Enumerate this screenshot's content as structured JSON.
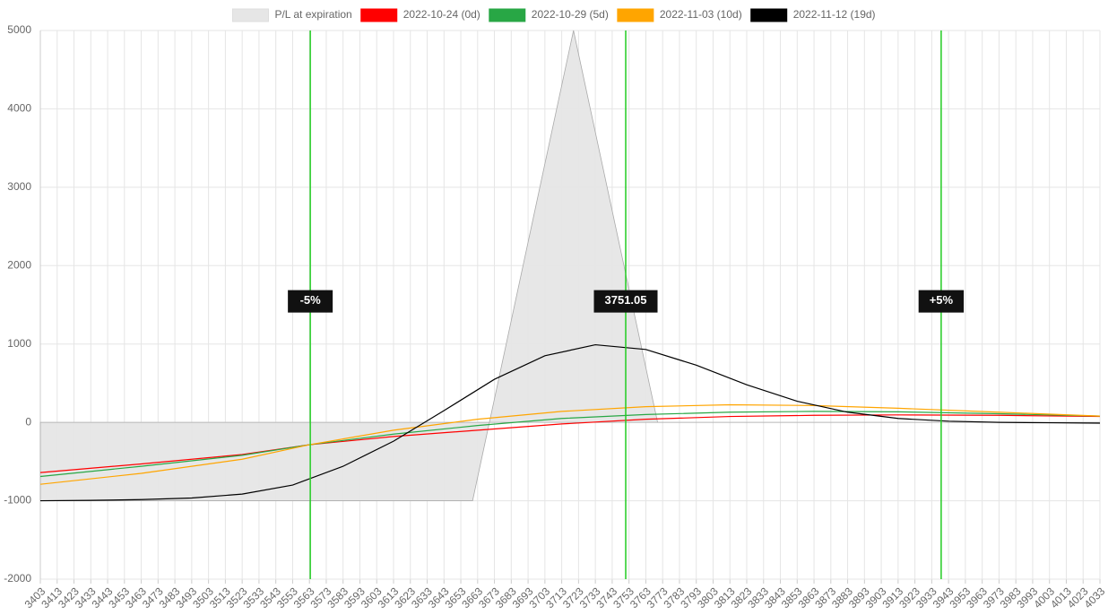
{
  "chart_data": {
    "type": "line",
    "xlim": [
      3403,
      4033
    ],
    "xticks": [
      3403,
      3413,
      3423,
      3433,
      3443,
      3453,
      3463,
      3473,
      3483,
      3493,
      3503,
      3513,
      3523,
      3533,
      3543,
      3553,
      3563,
      3573,
      3583,
      3593,
      3603,
      3613,
      3623,
      3633,
      3643,
      3653,
      3663,
      3673,
      3683,
      3693,
      3703,
      3713,
      3723,
      3733,
      3743,
      3753,
      3763,
      3773,
      3783,
      3793,
      3803,
      3813,
      3823,
      3833,
      3843,
      3853,
      3863,
      3873,
      3883,
      3893,
      3903,
      3913,
      3923,
      3933,
      3943,
      3953,
      3963,
      3973,
      3983,
      3993,
      4003,
      4013,
      4023,
      4033
    ],
    "ylim": [
      -2000,
      5000
    ],
    "yticks": [
      5000,
      4000,
      3000,
      2000,
      1000,
      0,
      -1000,
      -2000
    ],
    "grid": true,
    "legend": "top",
    "series": [
      {
        "name": "P/L at expiration",
        "color": "#e6e6e6",
        "fill": true,
        "x": [
          3403,
          3660,
          3720,
          3770,
          4033
        ],
        "values": [
          -1000,
          -1000,
          5000,
          0,
          0
        ]
      },
      {
        "name": "2022-10-24 (0d)",
        "color": "#ff0000",
        "x": [
          3403,
          3463,
          3523,
          3563,
          3613,
          3663,
          3713,
          3763,
          3813,
          3863,
          3913,
          3973,
          4033
        ],
        "values": [
          -640,
          -530,
          -410,
          -285,
          -180,
          -100,
          -20,
          40,
          75,
          90,
          95,
          90,
          75
        ]
      },
      {
        "name": "2022-10-29 (5d)",
        "color": "#28a745",
        "x": [
          3403,
          3463,
          3523,
          3563,
          3613,
          3663,
          3713,
          3763,
          3813,
          3863,
          3913,
          3973,
          4033
        ],
        "values": [
          -690,
          -560,
          -420,
          -285,
          -150,
          -40,
          50,
          100,
          130,
          140,
          135,
          110,
          80
        ]
      },
      {
        "name": "2022-11-03 (10d)",
        "color": "#ffa500",
        "x": [
          3403,
          3463,
          3523,
          3563,
          3613,
          3663,
          3713,
          3763,
          3813,
          3863,
          3913,
          3973,
          4033
        ],
        "values": [
          -790,
          -650,
          -470,
          -285,
          -100,
          40,
          140,
          200,
          225,
          215,
          180,
          130,
          80
        ]
      },
      {
        "name": "2022-11-12 (19d)",
        "color": "#000000",
        "x": [
          3403,
          3433,
          3463,
          3493,
          3523,
          3553,
          3583,
          3613,
          3643,
          3673,
          3703,
          3733,
          3763,
          3793,
          3823,
          3853,
          3883,
          3913,
          3943,
          3973,
          4003,
          4033
        ],
        "values": [
          -1000,
          -995,
          -985,
          -965,
          -915,
          -800,
          -560,
          -240,
          150,
          550,
          850,
          990,
          930,
          730,
          480,
          270,
          130,
          50,
          15,
          0,
          -5,
          -10
        ]
      }
    ],
    "markers": [
      {
        "x": 3563.5,
        "label": "-5%",
        "color": "#22cc22"
      },
      {
        "x": 3751.05,
        "color": "#22cc22"
      },
      {
        "x": 3938.6,
        "label": "+5%",
        "color": "#22cc22"
      }
    ],
    "marker_label_value": 1550
  }
}
